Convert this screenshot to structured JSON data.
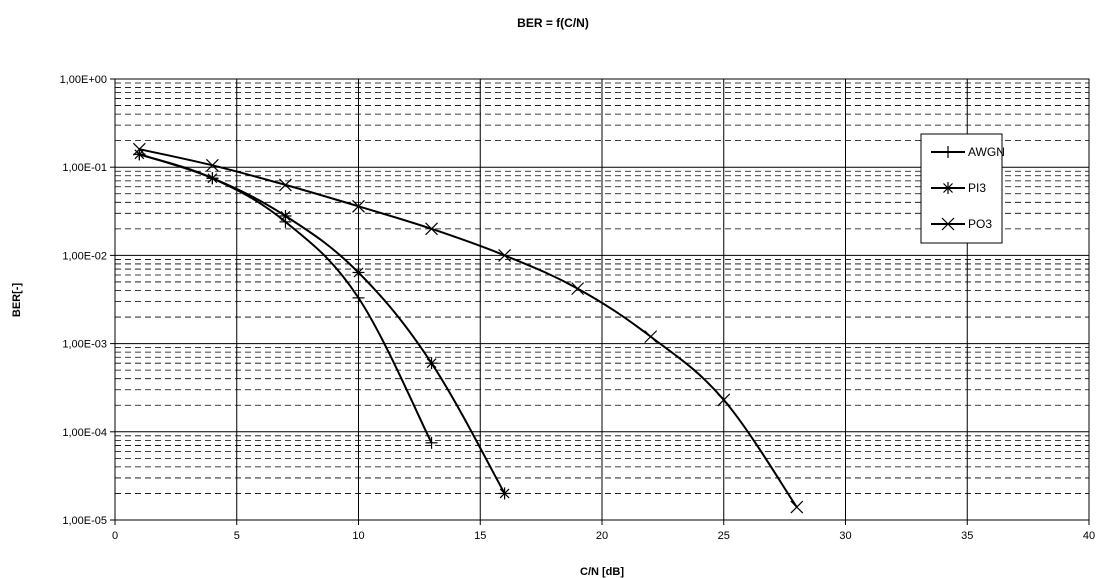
{
  "chart_data": {
    "type": "line",
    "title": "BER = f(C/N)",
    "xlabel": "C/N [dB]",
    "ylabel": "BER[-]",
    "xlim": [
      0,
      40
    ],
    "ylim": [
      1e-05,
      1
    ],
    "y_scale": "log",
    "x_ticks": [
      0,
      5,
      10,
      15,
      20,
      25,
      30,
      35,
      40
    ],
    "x_tick_labels": [
      "0",
      "5",
      "10",
      "15",
      "20",
      "25",
      "30",
      "35",
      "40"
    ],
    "y_ticks": [
      1,
      0.1,
      0.01,
      0.001,
      0.0001,
      1e-05
    ],
    "y_tick_labels": [
      "1,00E+00",
      "1,00E-01",
      "1,00E-02",
      "1,00E-03",
      "1,00E-04",
      "1,00E-05"
    ],
    "grid": {
      "x_major": true,
      "y_major": true,
      "y_minor_dashed": true
    },
    "legend_position": "right",
    "series": [
      {
        "name": "AWGN",
        "marker": "plus",
        "x": [
          1,
          4,
          7,
          10,
          13
        ],
        "y": [
          0.14,
          0.075,
          0.024,
          0.0033,
          7.5e-05
        ]
      },
      {
        "name": "PI3",
        "marker": "asterisk",
        "x": [
          1,
          4,
          7,
          10,
          13,
          16
        ],
        "y": [
          0.14,
          0.075,
          0.028,
          0.0064,
          0.0006,
          2e-05
        ]
      },
      {
        "name": "PO3",
        "marker": "x",
        "x": [
          1,
          4,
          7,
          10,
          13,
          16,
          19,
          22,
          25,
          28
        ],
        "y": [
          0.16,
          0.105,
          0.063,
          0.036,
          0.02,
          0.01,
          0.0042,
          0.0012,
          0.00023,
          1.4e-05
        ]
      }
    ]
  }
}
